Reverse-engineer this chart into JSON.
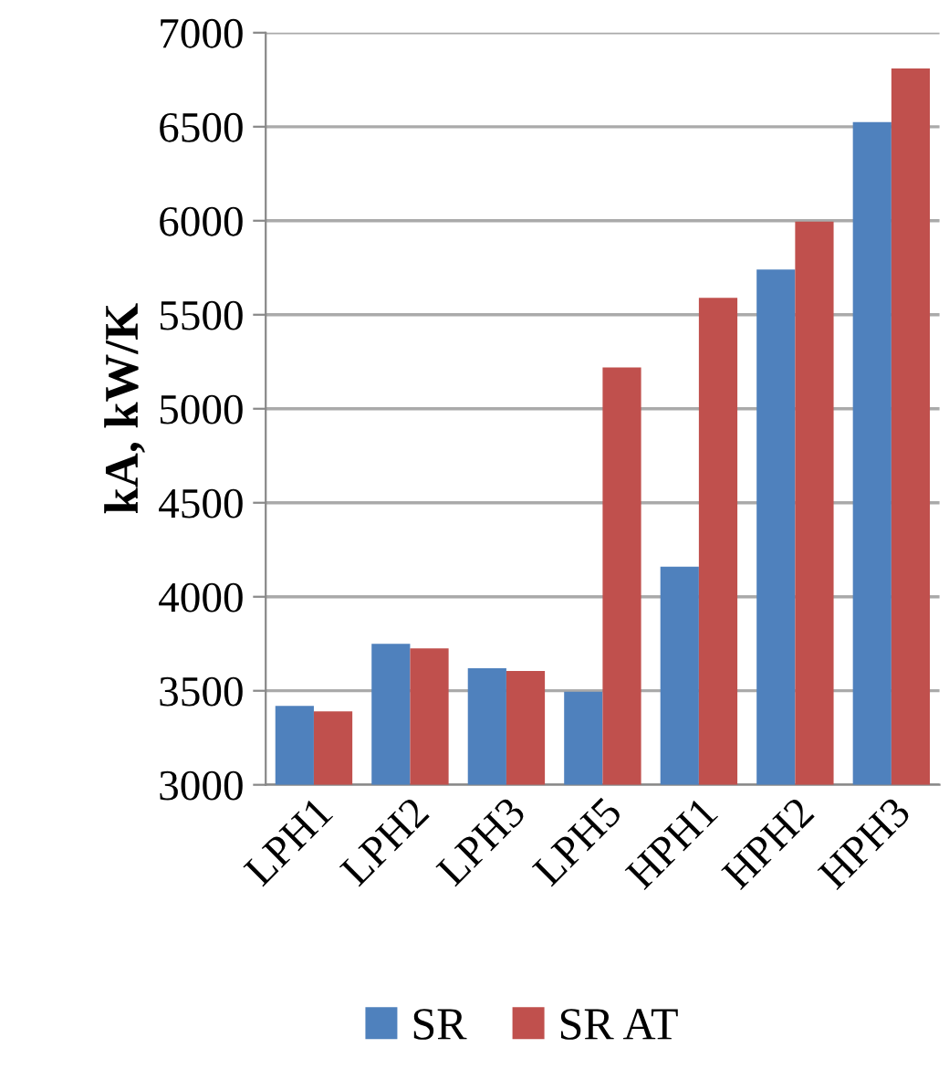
{
  "chart_data": {
    "type": "bar",
    "ylabel": "kA, kW/K",
    "categories": [
      "LPH1",
      "LPH2",
      "LPH3",
      "LPH5",
      "HPH1",
      "HPH2",
      "HPH3"
    ],
    "series": [
      {
        "name": "SR",
        "color": "#4f81bd",
        "values": [
          3420,
          3750,
          3620,
          3495,
          4160,
          5740,
          6525
        ]
      },
      {
        "name": "SR AT",
        "color": "#c0504d",
        "values": [
          3390,
          3725,
          3605,
          5220,
          5590,
          5995,
          6810
        ]
      }
    ],
    "ylim": [
      3000,
      7000
    ],
    "yticks": [
      3000,
      3500,
      4000,
      4500,
      5000,
      5500,
      6000,
      6500,
      7000
    ],
    "grid": "y",
    "legend": "bottom"
  }
}
